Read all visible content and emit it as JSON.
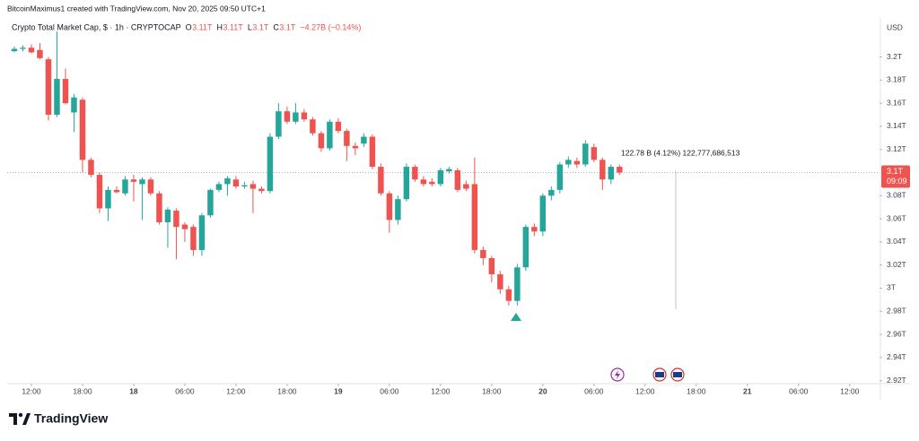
{
  "attribution": "BitcoinMaximus1 created with TradingView.com, Nov 20, 2025 09:50 UTC+1",
  "brand": "TradingView",
  "chart_data": {
    "type": "candlestick",
    "title": "Crypto Total Market Cap, $ · 1h · CRYPTOCAP",
    "ohlc_legend": [
      {
        "key": "O",
        "value": "3.11T"
      },
      {
        "key": "H",
        "value": "3.11T"
      },
      {
        "key": "L",
        "value": "3.1T"
      },
      {
        "key": "C",
        "value": "3.1T"
      }
    ],
    "change": "−4.27B (−0.14%)",
    "currency": "USD",
    "up_color": "#26a69a",
    "down_color": "#ef5350",
    "open": [
      3.205,
      3.207,
      3.208,
      3.206,
      3.198,
      3.15,
      3.181,
      3.152,
      3.163,
      3.111,
      3.098,
      3.069,
      3.085,
      3.082,
      3.094,
      3.09,
      3.094,
      3.082,
      3.057,
      3.067,
      3.055,
      3.053,
      3.033,
      3.063,
      3.085,
      3.09,
      3.094,
      3.088,
      3.09,
      3.086,
      3.084,
      3.131,
      3.153,
      3.144,
      3.152,
      3.146,
      3.134,
      3.121,
      3.144,
      3.136,
      3.123,
      3.125,
      3.131,
      3.105,
      3.082,
      3.059,
      3.077,
      3.105,
      3.094,
      3.092,
      3.09,
      3.101,
      3.102,
      3.09,
      3.09,
      3.033,
      3.026,
      3.012,
      2.999,
      2.989,
      3.018,
      3.053,
      3.049,
      3.08,
      3.085,
      3.107,
      3.11,
      3.107,
      3.122,
      3.111,
      3.094,
      3.105
    ],
    "high": [
      3.209,
      3.21,
      3.211,
      3.212,
      3.2,
      3.222,
      3.19,
      3.168,
      3.165,
      3.113,
      3.1,
      3.088,
      3.088,
      3.097,
      3.098,
      3.096,
      3.096,
      3.084,
      3.07,
      3.069,
      3.057,
      3.055,
      3.065,
      3.086,
      3.092,
      3.097,
      3.097,
      3.092,
      3.093,
      3.088,
      3.134,
      3.16,
      3.157,
      3.16,
      3.155,
      3.148,
      3.136,
      3.146,
      3.147,
      3.138,
      3.126,
      3.134,
      3.133,
      3.108,
      3.084,
      3.08,
      3.108,
      3.107,
      3.097,
      3.095,
      3.104,
      3.105,
      3.104,
      3.093,
      3.113,
      3.036,
      3.028,
      3.015,
      3.002,
      3.021,
      3.055,
      3.056,
      3.082,
      3.088,
      3.109,
      3.114,
      3.113,
      3.128,
      3.125,
      3.113,
      3.107,
      3.107
    ],
    "low": [
      3.204,
      3.205,
      3.203,
      3.198,
      3.145,
      3.148,
      3.159,
      3.135,
      3.1,
      3.096,
      3.065,
      3.058,
      3.082,
      3.08,
      3.075,
      3.059,
      3.08,
      3.055,
      3.035,
      3.025,
      3.04,
      3.028,
      3.028,
      3.061,
      3.083,
      3.08,
      3.086,
      3.086,
      3.065,
      3.082,
      3.082,
      3.129,
      3.142,
      3.142,
      3.144,
      3.132,
      3.118,
      3.119,
      3.134,
      3.11,
      3.115,
      3.122,
      3.103,
      3.08,
      3.048,
      3.055,
      3.075,
      3.092,
      3.088,
      3.088,
      3.088,
      3.099,
      3.083,
      3.084,
      3.03,
      3.02,
      3.005,
      2.995,
      2.985,
      2.985,
      3.015,
      3.045,
      3.045,
      3.076,
      3.082,
      3.104,
      3.104,
      3.105,
      3.109,
      3.085,
      3.09,
      3.098
    ],
    "close": [
      3.207,
      3.208,
      3.204,
      3.199,
      3.15,
      3.181,
      3.16,
      3.165,
      3.111,
      3.098,
      3.069,
      3.085,
      3.083,
      3.094,
      3.092,
      3.094,
      3.082,
      3.057,
      3.068,
      3.053,
      3.051,
      3.033,
      3.063,
      3.085,
      3.09,
      3.095,
      3.088,
      3.089,
      3.086,
      3.084,
      3.131,
      3.153,
      3.144,
      3.152,
      3.146,
      3.134,
      3.121,
      3.144,
      3.136,
      3.123,
      3.121,
      3.131,
      3.105,
      3.082,
      3.059,
      3.077,
      3.105,
      3.094,
      3.09,
      3.09,
      3.102,
      3.103,
      3.085,
      3.086,
      3.033,
      3.026,
      3.012,
      2.999,
      2.989,
      3.018,
      3.053,
      3.049,
      3.08,
      3.085,
      3.107,
      3.111,
      3.107,
      3.125,
      3.111,
      3.094,
      3.105,
      3.1
    ],
    "xlim": [
      -0.84,
      101.5
    ],
    "xticks": [
      {
        "value": 2,
        "label": "12:00"
      },
      {
        "value": 8,
        "label": "18:00"
      },
      {
        "value": 14,
        "label": "18"
      },
      {
        "value": 20,
        "label": "06:00"
      },
      {
        "value": 26,
        "label": "12:00"
      },
      {
        "value": 32,
        "label": "18:00"
      },
      {
        "value": 38,
        "label": "19"
      },
      {
        "value": 44,
        "label": "06:00"
      },
      {
        "value": 50,
        "label": "12:00"
      },
      {
        "value": 56,
        "label": "18:00"
      },
      {
        "value": 62,
        "label": "20"
      },
      {
        "value": 68,
        "label": "06:00"
      },
      {
        "value": 74,
        "label": "12:00"
      },
      {
        "value": 80,
        "label": "18:00"
      },
      {
        "value": 86,
        "label": "21"
      },
      {
        "value": 92,
        "label": "06:00"
      },
      {
        "value": 98,
        "label": "12:00"
      }
    ],
    "ylim": [
      2.912,
      3.226
    ],
    "yticks": [
      {
        "value": 2.92,
        "label": "2.92T"
      },
      {
        "value": 2.94,
        "label": "2.94T"
      },
      {
        "value": 2.96,
        "label": "2.96T"
      },
      {
        "value": 2.98,
        "label": "2.98T"
      },
      {
        "value": 3,
        "label": "3T"
      },
      {
        "value": 3.02,
        "label": "3.02T"
      },
      {
        "value": 3.04,
        "label": "3.04T"
      },
      {
        "value": 3.06,
        "label": "3.06T"
      },
      {
        "value": 3.08,
        "label": "3.08T"
      },
      {
        "value": 3.12,
        "label": "3.12T"
      },
      {
        "value": 3.14,
        "label": "3.14T"
      },
      {
        "value": 3.16,
        "label": "3.16T"
      },
      {
        "value": 3.18,
        "label": "3.18T"
      },
      {
        "value": 3.2,
        "label": "3.2T"
      }
    ],
    "last_price": {
      "value": 3.1,
      "label": "3.1T"
    },
    "countdown": "09:09",
    "measure_label": "122.78 B (4.12%) 122,777,686,513"
  }
}
